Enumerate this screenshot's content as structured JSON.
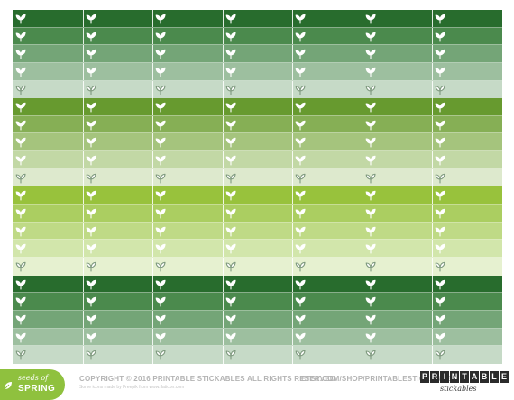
{
  "sheet": {
    "columns": 7,
    "sprout_icon": "sprout-icon",
    "groups": [
      {
        "name": "dark-green",
        "shades": [
          "#286c2d",
          "#4b8a4d",
          "#74a577",
          "#9dbf9f",
          "#c6dac7"
        ]
      },
      {
        "name": "olive-green",
        "shades": [
          "#679a2f",
          "#86af55",
          "#a5c47d",
          "#c2d8a5",
          "#dde9cd"
        ]
      },
      {
        "name": "lime-green",
        "shades": [
          "#98c23c",
          "#abce61",
          "#bfda86",
          "#d2e6ab",
          "#e6f1d0"
        ]
      },
      {
        "name": "dark-green-repeat",
        "shades": [
          "#286c2d",
          "#4b8a4d",
          "#74a577",
          "#9dbf9f",
          "#c6dac7"
        ]
      }
    ]
  },
  "footer": {
    "badge_small": "seeds of",
    "badge_big": "SPRING",
    "badge_color": "#8fc13e",
    "copyright": "COPYRIGHT © 2016 PRINTABLE STICKABLES ALL RIGHTS RESERVED.",
    "credit": "Some icons made by Freepik from www.flaticon.com",
    "etsy": "ETSY.COM/SHOP/PRINTABLESTICKABLES",
    "brand_letters": [
      "P",
      "R",
      "I",
      "N",
      "T",
      "A",
      "B",
      "L",
      "E"
    ],
    "brand_script": "stickables"
  }
}
